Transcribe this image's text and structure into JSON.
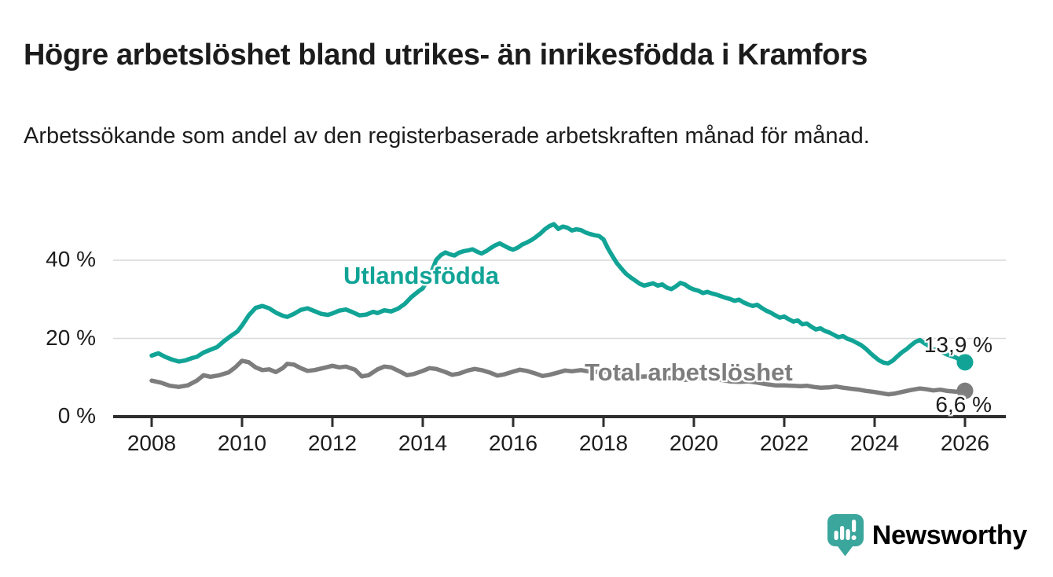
{
  "header": {
    "title": "Högre arbetslöshet bland utrikes- än inrikesfödda i Kramfors",
    "subtitle": "Arbetssökande som andel av den registerbaserade arbetskraften månad för månad."
  },
  "colors": {
    "foreign_born_line": "#11a496",
    "total_line": "#7d7d7d",
    "axis": "#2e2e2e",
    "gridline": "#d9d9d9",
    "text": "#1d1d1d",
    "logo": "#3ba69c"
  },
  "chart_data": {
    "type": "line",
    "title": "Högre arbetslöshet bland utrikes- än inrikesfödda i Kramfors",
    "subtitle": "Arbetssökande som andel av den registerbaserade arbetskraften månad för månad.",
    "xlabel": "",
    "ylabel": "",
    "xlim": [
      2007.15,
      2026.9
    ],
    "ylim": [
      0,
      56
    ],
    "grid": "horizontal",
    "legend_position": "inline-labels",
    "x_ticks": [
      2008,
      2010,
      2012,
      2014,
      2016,
      2018,
      2020,
      2022,
      2024,
      2026
    ],
    "y_ticks": [
      {
        "value": 0,
        "label": "0 %"
      },
      {
        "value": 20,
        "label": "20 %"
      },
      {
        "value": 40,
        "label": "40 %"
      }
    ],
    "series": [
      {
        "name": "Utlandsfödda",
        "color": "#11a496",
        "end_value": 13.9,
        "end_label": "13,9 %",
        "points": [
          [
            2008.0,
            15.6
          ],
          [
            2008.15,
            16.2
          ],
          [
            2008.3,
            15.3
          ],
          [
            2008.45,
            14.6
          ],
          [
            2008.6,
            14.1
          ],
          [
            2008.75,
            14.4
          ],
          [
            2008.9,
            15.0
          ],
          [
            2009.0,
            15.3
          ],
          [
            2009.15,
            16.4
          ],
          [
            2009.3,
            17.1
          ],
          [
            2009.45,
            17.8
          ],
          [
            2009.6,
            19.3
          ],
          [
            2009.75,
            20.6
          ],
          [
            2009.9,
            21.8
          ],
          [
            2010.0,
            23.3
          ],
          [
            2010.15,
            25.9
          ],
          [
            2010.3,
            27.8
          ],
          [
            2010.45,
            28.3
          ],
          [
            2010.6,
            27.7
          ],
          [
            2010.75,
            26.6
          ],
          [
            2010.9,
            25.8
          ],
          [
            2011.0,
            25.5
          ],
          [
            2011.15,
            26.3
          ],
          [
            2011.3,
            27.3
          ],
          [
            2011.45,
            27.7
          ],
          [
            2011.6,
            27.0
          ],
          [
            2011.75,
            26.3
          ],
          [
            2011.9,
            26.0
          ],
          [
            2012.0,
            26.4
          ],
          [
            2012.15,
            27.1
          ],
          [
            2012.3,
            27.4
          ],
          [
            2012.45,
            26.7
          ],
          [
            2012.6,
            25.9
          ],
          [
            2012.75,
            26.1
          ],
          [
            2012.9,
            26.8
          ],
          [
            2013.0,
            26.5
          ],
          [
            2013.15,
            27.2
          ],
          [
            2013.3,
            26.9
          ],
          [
            2013.45,
            27.6
          ],
          [
            2013.6,
            28.8
          ],
          [
            2013.75,
            30.6
          ],
          [
            2013.9,
            32.0
          ],
          [
            2014.0,
            32.8
          ],
          [
            2014.1,
            34.8
          ],
          [
            2014.2,
            37.2
          ],
          [
            2014.3,
            40.1
          ],
          [
            2014.4,
            41.3
          ],
          [
            2014.5,
            42.0
          ],
          [
            2014.6,
            41.5
          ],
          [
            2014.7,
            41.2
          ],
          [
            2014.8,
            41.9
          ],
          [
            2014.9,
            42.3
          ],
          [
            2015.0,
            42.5
          ],
          [
            2015.1,
            42.8
          ],
          [
            2015.2,
            42.2
          ],
          [
            2015.3,
            41.7
          ],
          [
            2015.4,
            42.3
          ],
          [
            2015.5,
            43.1
          ],
          [
            2015.6,
            43.8
          ],
          [
            2015.7,
            44.3
          ],
          [
            2015.8,
            43.7
          ],
          [
            2015.9,
            43.1
          ],
          [
            2016.0,
            42.7
          ],
          [
            2016.1,
            43.2
          ],
          [
            2016.2,
            44.0
          ],
          [
            2016.3,
            44.5
          ],
          [
            2016.4,
            45.1
          ],
          [
            2016.5,
            45.9
          ],
          [
            2016.6,
            46.8
          ],
          [
            2016.7,
            47.9
          ],
          [
            2016.8,
            48.7
          ],
          [
            2016.9,
            49.2
          ],
          [
            2017.0,
            48.0
          ],
          [
            2017.1,
            48.6
          ],
          [
            2017.2,
            48.3
          ],
          [
            2017.3,
            47.6
          ],
          [
            2017.4,
            47.9
          ],
          [
            2017.5,
            47.7
          ],
          [
            2017.6,
            47.1
          ],
          [
            2017.7,
            46.7
          ],
          [
            2017.8,
            46.4
          ],
          [
            2017.9,
            46.2
          ],
          [
            2018.0,
            45.3
          ],
          [
            2018.1,
            43.0
          ],
          [
            2018.2,
            41.0
          ],
          [
            2018.3,
            39.2
          ],
          [
            2018.4,
            37.8
          ],
          [
            2018.5,
            36.5
          ],
          [
            2018.6,
            35.6
          ],
          [
            2018.7,
            34.8
          ],
          [
            2018.8,
            34.0
          ],
          [
            2018.9,
            33.5
          ],
          [
            2019.0,
            33.8
          ],
          [
            2019.1,
            34.1
          ],
          [
            2019.2,
            33.5
          ],
          [
            2019.3,
            33.8
          ],
          [
            2019.4,
            33.0
          ],
          [
            2019.5,
            32.6
          ],
          [
            2019.6,
            33.3
          ],
          [
            2019.7,
            34.2
          ],
          [
            2019.8,
            33.8
          ],
          [
            2019.9,
            33.0
          ],
          [
            2020.0,
            32.5
          ],
          [
            2020.1,
            32.2
          ],
          [
            2020.2,
            31.6
          ],
          [
            2020.3,
            31.9
          ],
          [
            2020.4,
            31.5
          ],
          [
            2020.5,
            31.2
          ],
          [
            2020.6,
            30.8
          ],
          [
            2020.7,
            30.4
          ],
          [
            2020.8,
            30.1
          ],
          [
            2020.9,
            29.6
          ],
          [
            2021.0,
            29.9
          ],
          [
            2021.1,
            29.2
          ],
          [
            2021.2,
            28.7
          ],
          [
            2021.3,
            28.3
          ],
          [
            2021.4,
            28.6
          ],
          [
            2021.5,
            27.8
          ],
          [
            2021.6,
            27.1
          ],
          [
            2021.7,
            26.6
          ],
          [
            2021.8,
            25.9
          ],
          [
            2021.9,
            25.3
          ],
          [
            2022.0,
            25.6
          ],
          [
            2022.1,
            24.9
          ],
          [
            2022.2,
            24.3
          ],
          [
            2022.3,
            24.6
          ],
          [
            2022.4,
            23.6
          ],
          [
            2022.5,
            23.8
          ],
          [
            2022.6,
            23.0
          ],
          [
            2022.7,
            22.3
          ],
          [
            2022.8,
            22.6
          ],
          [
            2022.9,
            21.9
          ],
          [
            2023.0,
            21.5
          ],
          [
            2023.1,
            20.9
          ],
          [
            2023.2,
            20.3
          ],
          [
            2023.3,
            20.6
          ],
          [
            2023.4,
            19.9
          ],
          [
            2023.5,
            19.5
          ],
          [
            2023.6,
            18.9
          ],
          [
            2023.7,
            18.3
          ],
          [
            2023.8,
            17.4
          ],
          [
            2023.9,
            16.3
          ],
          [
            2024.0,
            15.3
          ],
          [
            2024.1,
            14.4
          ],
          [
            2024.2,
            13.8
          ],
          [
            2024.3,
            13.6
          ],
          [
            2024.4,
            14.3
          ],
          [
            2024.5,
            15.4
          ],
          [
            2024.6,
            16.4
          ],
          [
            2024.7,
            17.2
          ],
          [
            2024.8,
            18.2
          ],
          [
            2024.9,
            19.1
          ],
          [
            2025.0,
            19.6
          ],
          [
            2025.1,
            18.8
          ],
          [
            2025.2,
            18.1
          ],
          [
            2025.3,
            17.0
          ],
          [
            2025.4,
            17.3
          ],
          [
            2025.5,
            16.5
          ],
          [
            2025.6,
            15.9
          ],
          [
            2025.7,
            15.5
          ],
          [
            2025.8,
            15.1
          ],
          [
            2025.9,
            14.4
          ],
          [
            2026.0,
            13.9
          ]
        ]
      },
      {
        "name": "Total arbetslöshet",
        "color": "#7d7d7d",
        "end_value": 6.6,
        "end_label": "6,6 %",
        "points": [
          [
            2008.0,
            9.2
          ],
          [
            2008.2,
            8.7
          ],
          [
            2008.4,
            7.9
          ],
          [
            2008.6,
            7.6
          ],
          [
            2008.8,
            8.0
          ],
          [
            2009.0,
            9.2
          ],
          [
            2009.15,
            10.6
          ],
          [
            2009.3,
            10.2
          ],
          [
            2009.5,
            10.6
          ],
          [
            2009.7,
            11.3
          ],
          [
            2009.85,
            12.6
          ],
          [
            2010.0,
            14.3
          ],
          [
            2010.15,
            13.9
          ],
          [
            2010.3,
            12.6
          ],
          [
            2010.45,
            11.9
          ],
          [
            2010.6,
            12.1
          ],
          [
            2010.75,
            11.4
          ],
          [
            2010.9,
            12.4
          ],
          [
            2011.0,
            13.5
          ],
          [
            2011.15,
            13.3
          ],
          [
            2011.3,
            12.4
          ],
          [
            2011.45,
            11.7
          ],
          [
            2011.6,
            11.9
          ],
          [
            2011.75,
            12.3
          ],
          [
            2011.9,
            12.7
          ],
          [
            2012.0,
            13.0
          ],
          [
            2012.15,
            12.6
          ],
          [
            2012.3,
            12.8
          ],
          [
            2012.5,
            12.0
          ],
          [
            2012.65,
            10.3
          ],
          [
            2012.8,
            10.6
          ],
          [
            2013.0,
            12.1
          ],
          [
            2013.15,
            12.8
          ],
          [
            2013.3,
            12.6
          ],
          [
            2013.5,
            11.5
          ],
          [
            2013.65,
            10.6
          ],
          [
            2013.8,
            10.9
          ],
          [
            2014.0,
            11.7
          ],
          [
            2014.15,
            12.4
          ],
          [
            2014.3,
            12.2
          ],
          [
            2014.5,
            11.4
          ],
          [
            2014.65,
            10.7
          ],
          [
            2014.8,
            11.0
          ],
          [
            2015.0,
            11.8
          ],
          [
            2015.15,
            12.2
          ],
          [
            2015.3,
            11.9
          ],
          [
            2015.5,
            11.2
          ],
          [
            2015.65,
            10.5
          ],
          [
            2015.8,
            10.8
          ],
          [
            2016.0,
            11.5
          ],
          [
            2016.15,
            12.0
          ],
          [
            2016.3,
            11.7
          ],
          [
            2016.5,
            11.0
          ],
          [
            2016.65,
            10.4
          ],
          [
            2016.8,
            10.7
          ],
          [
            2017.0,
            11.3
          ],
          [
            2017.15,
            11.8
          ],
          [
            2017.3,
            11.6
          ],
          [
            2017.5,
            11.9
          ],
          [
            2017.65,
            11.6
          ],
          [
            2017.8,
            11.4
          ],
          [
            2018.0,
            11.5
          ],
          [
            2018.2,
            11.7
          ],
          [
            2018.4,
            11.2
          ],
          [
            2018.6,
            10.6
          ],
          [
            2018.8,
            10.2
          ],
          [
            2019.0,
            10.3
          ],
          [
            2019.2,
            10.5
          ],
          [
            2019.4,
            10.0
          ],
          [
            2019.6,
            9.6
          ],
          [
            2019.8,
            9.4
          ],
          [
            2020.0,
            9.6
          ],
          [
            2020.2,
            10.0
          ],
          [
            2020.4,
            9.8
          ],
          [
            2020.6,
            9.4
          ],
          [
            2020.8,
            9.0
          ],
          [
            2021.0,
            8.9
          ],
          [
            2021.2,
            9.0
          ],
          [
            2021.4,
            8.7
          ],
          [
            2021.6,
            8.3
          ],
          [
            2021.8,
            8.0
          ],
          [
            2022.0,
            8.0
          ],
          [
            2022.2,
            7.9
          ],
          [
            2022.35,
            7.8
          ],
          [
            2022.5,
            7.9
          ],
          [
            2022.65,
            7.6
          ],
          [
            2022.8,
            7.4
          ],
          [
            2023.0,
            7.5
          ],
          [
            2023.15,
            7.7
          ],
          [
            2023.3,
            7.4
          ],
          [
            2023.5,
            7.1
          ],
          [
            2023.65,
            6.9
          ],
          [
            2023.8,
            6.6
          ],
          [
            2024.0,
            6.3
          ],
          [
            2024.15,
            6.0
          ],
          [
            2024.3,
            5.7
          ],
          [
            2024.45,
            5.9
          ],
          [
            2024.6,
            6.3
          ],
          [
            2024.8,
            6.8
          ],
          [
            2025.0,
            7.2
          ],
          [
            2025.15,
            7.0
          ],
          [
            2025.3,
            6.7
          ],
          [
            2025.45,
            6.9
          ],
          [
            2025.6,
            6.6
          ],
          [
            2025.8,
            6.4
          ],
          [
            2026.0,
            6.6
          ]
        ]
      }
    ]
  },
  "footer": {
    "logo_text": "Newsworthy"
  }
}
